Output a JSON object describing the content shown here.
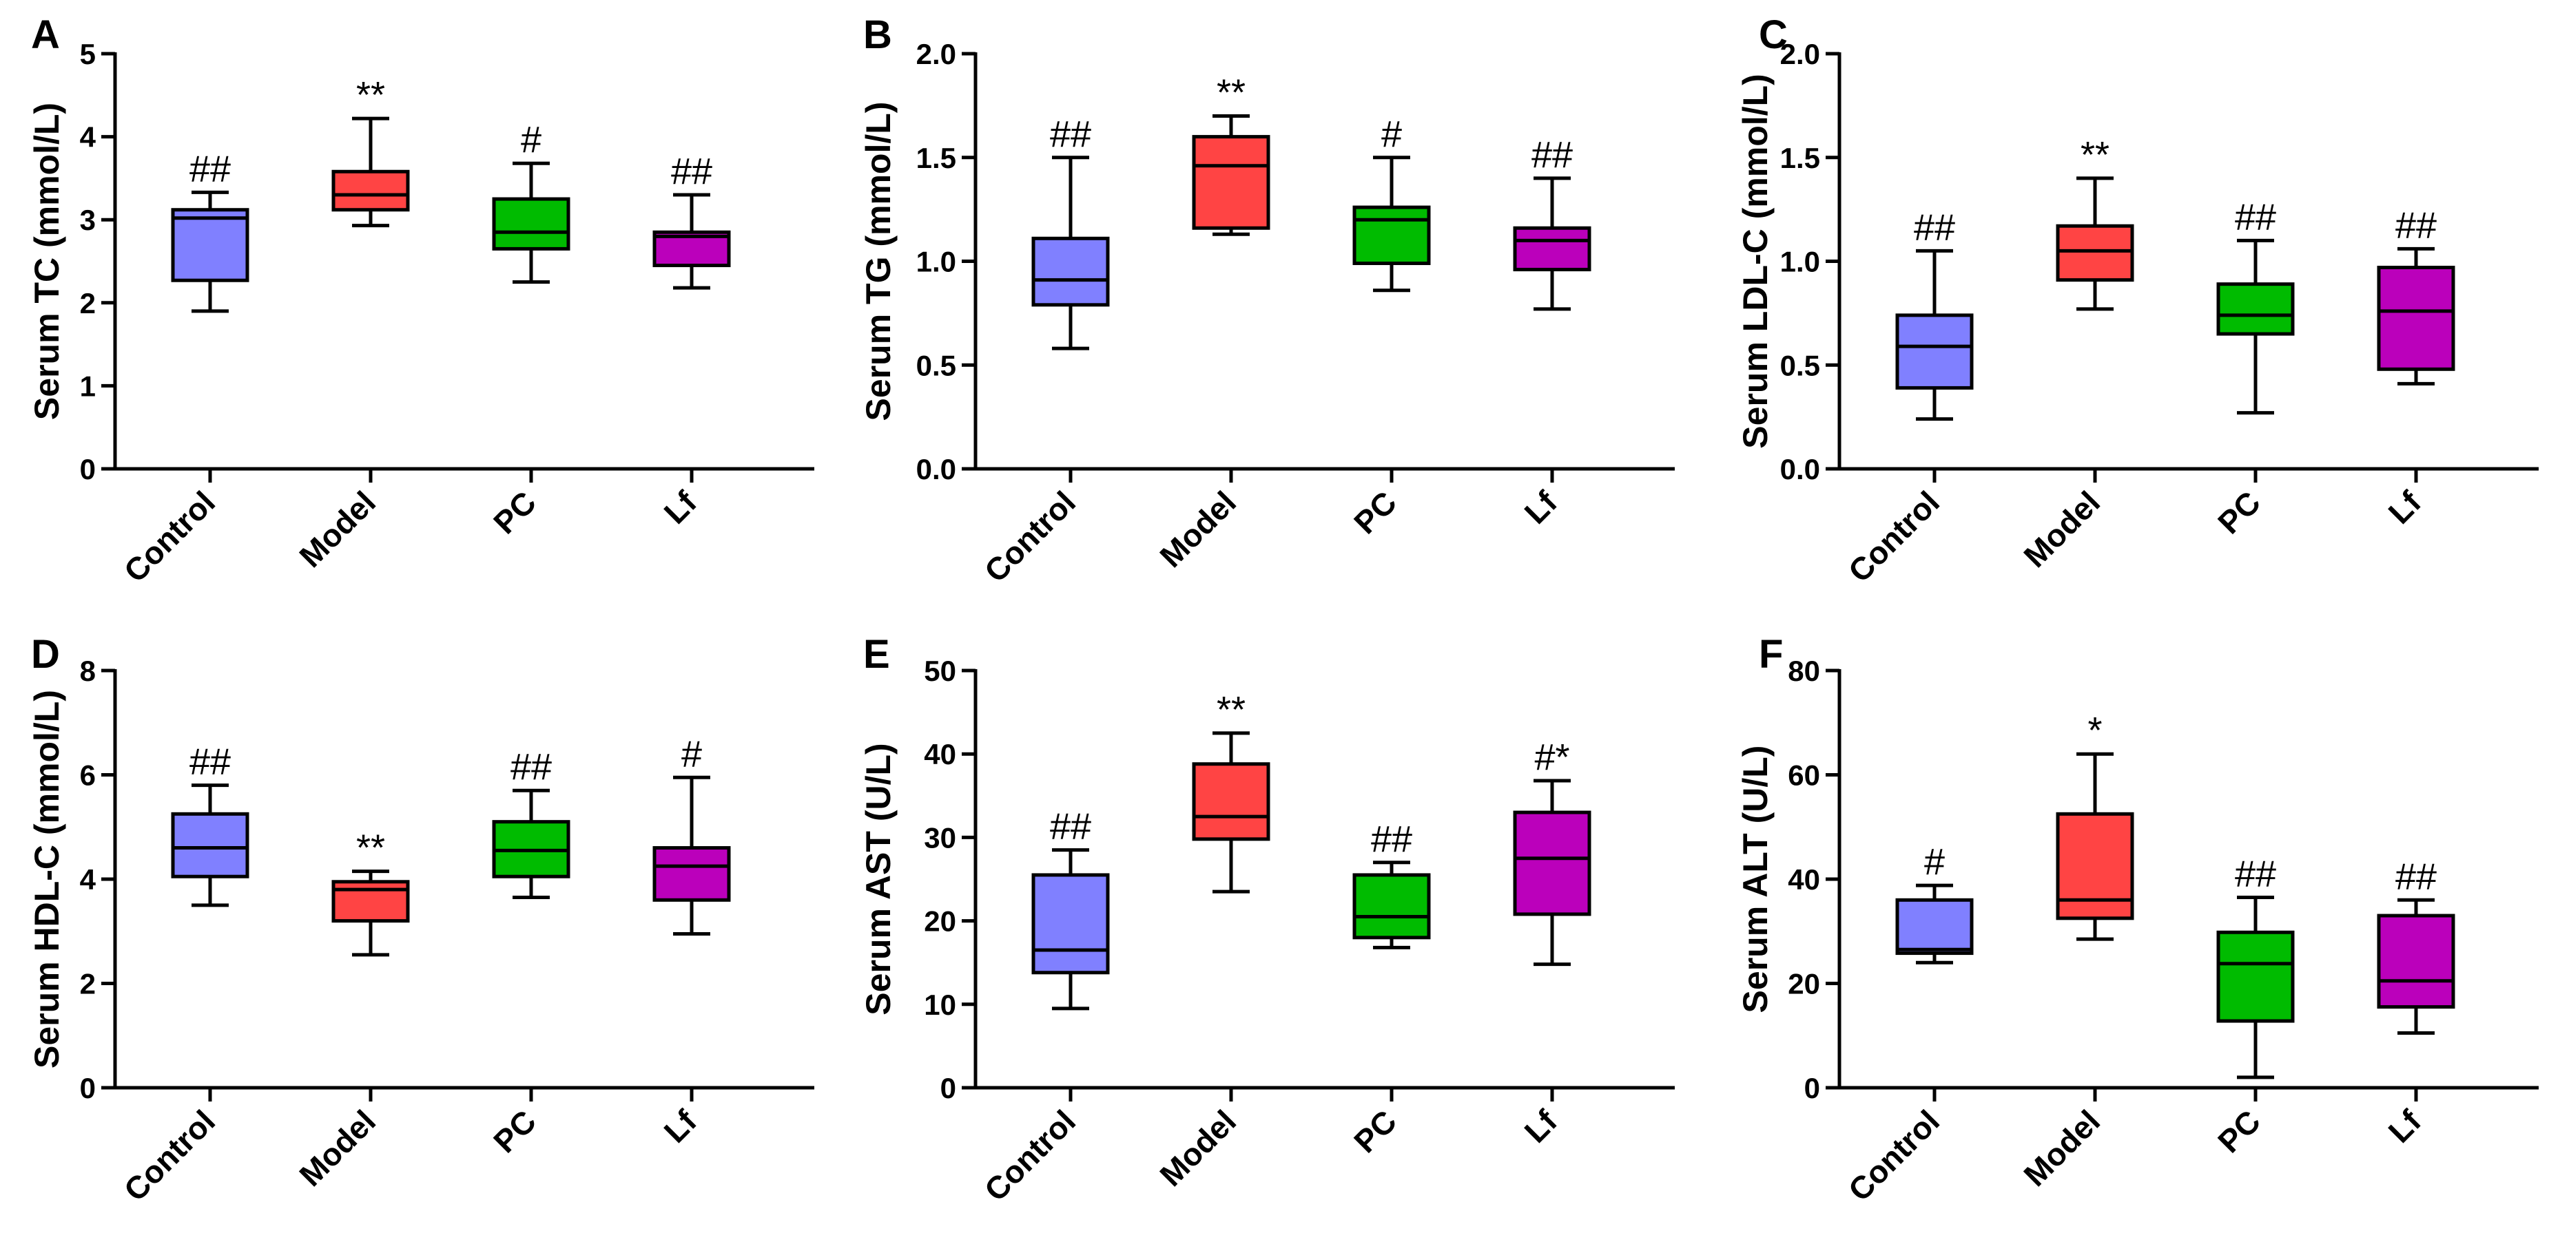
{
  "chart_data": [
    {
      "type": "box",
      "panel": "A",
      "ylabel": "Serum TC (mmol/L)",
      "ylim": [
        0,
        5
      ],
      "yticks": [
        "0",
        "1",
        "2",
        "3",
        "4",
        "5"
      ],
      "categories": [
        "Control",
        "Model",
        "PC",
        "Lf"
      ],
      "colors": [
        "#8080ff",
        "#ff4444",
        "#00bb00",
        "#bb00bb"
      ],
      "boxes": [
        {
          "min": 1.9,
          "q1": 2.27,
          "median": 3.02,
          "q3": 3.12,
          "max": 3.33,
          "sig": "##"
        },
        {
          "min": 2.93,
          "q1": 3.12,
          "median": 3.3,
          "q3": 3.58,
          "max": 4.22,
          "sig": "**"
        },
        {
          "min": 2.25,
          "q1": 2.65,
          "median": 2.85,
          "q3": 3.25,
          "max": 3.68,
          "sig": "#"
        },
        {
          "min": 2.18,
          "q1": 2.45,
          "median": 2.8,
          "q3": 2.85,
          "max": 3.3,
          "sig": "##"
        }
      ]
    },
    {
      "type": "box",
      "panel": "B",
      "ylabel": "Serum TG (mmol/L)",
      "ylim": [
        0,
        2
      ],
      "yticks": [
        "0.0",
        "0.5",
        "1.0",
        "1.5",
        "2.0"
      ],
      "categories": [
        "Control",
        "Model",
        "PC",
        "Lf"
      ],
      "colors": [
        "#8080ff",
        "#ff4444",
        "#00bb00",
        "#bb00bb"
      ],
      "boxes": [
        {
          "min": 0.58,
          "q1": 0.79,
          "median": 0.91,
          "q3": 1.11,
          "max": 1.5,
          "sig": "##"
        },
        {
          "min": 1.13,
          "q1": 1.16,
          "median": 1.46,
          "q3": 1.6,
          "max": 1.7,
          "sig": "**"
        },
        {
          "min": 0.86,
          "q1": 0.99,
          "median": 1.2,
          "q3": 1.26,
          "max": 1.5,
          "sig": "#"
        },
        {
          "min": 0.77,
          "q1": 0.96,
          "median": 1.1,
          "q3": 1.16,
          "max": 1.4,
          "sig": "##"
        }
      ]
    },
    {
      "type": "box",
      "panel": "C",
      "ylabel": "Serum LDL-C (mmol/L)",
      "ylim": [
        0,
        2
      ],
      "yticks": [
        "0.0",
        "0.5",
        "1.0",
        "1.5",
        "2.0"
      ],
      "categories": [
        "Control",
        "Model",
        "PC",
        "Lf"
      ],
      "colors": [
        "#8080ff",
        "#ff4444",
        "#00bb00",
        "#bb00bb"
      ],
      "boxes": [
        {
          "min": 0.24,
          "q1": 0.39,
          "median": 0.59,
          "q3": 0.74,
          "max": 1.05,
          "sig": "##"
        },
        {
          "min": 0.77,
          "q1": 0.91,
          "median": 1.05,
          "q3": 1.17,
          "max": 1.4,
          "sig": "**"
        },
        {
          "min": 0.27,
          "q1": 0.65,
          "median": 0.74,
          "q3": 0.89,
          "max": 1.1,
          "sig": "##"
        },
        {
          "min": 0.41,
          "q1": 0.48,
          "median": 0.76,
          "q3": 0.97,
          "max": 1.06,
          "sig": "##"
        }
      ]
    },
    {
      "type": "box",
      "panel": "D",
      "ylabel": "Serum HDL-C (mmol/L)",
      "ylim": [
        0,
        8
      ],
      "yticks": [
        "0",
        "2",
        "4",
        "6",
        "8"
      ],
      "categories": [
        "Control",
        "Model",
        "PC",
        "Lf"
      ],
      "colors": [
        "#8080ff",
        "#ff4444",
        "#00bb00",
        "#bb00bb"
      ],
      "boxes": [
        {
          "min": 3.5,
          "q1": 4.05,
          "median": 4.6,
          "q3": 5.25,
          "max": 5.8,
          "sig": "##"
        },
        {
          "min": 2.55,
          "q1": 3.2,
          "median": 3.8,
          "q3": 3.95,
          "max": 4.15,
          "sig": "**"
        },
        {
          "min": 3.65,
          "q1": 4.05,
          "median": 4.55,
          "q3": 5.1,
          "max": 5.7,
          "sig": "##"
        },
        {
          "min": 2.95,
          "q1": 3.6,
          "median": 4.25,
          "q3": 4.6,
          "max": 5.95,
          "sig": "#"
        }
      ]
    },
    {
      "type": "box",
      "panel": "E",
      "ylabel": "Serum AST (U/L)",
      "ylim": [
        0,
        50
      ],
      "yticks": [
        "0",
        "10",
        "20",
        "30",
        "40",
        "50"
      ],
      "categories": [
        "Control",
        "Model",
        "PC",
        "Lf"
      ],
      "colors": [
        "#8080ff",
        "#ff4444",
        "#00bb00",
        "#bb00bb"
      ],
      "boxes": [
        {
          "min": 9.5,
          "q1": 13.8,
          "median": 16.5,
          "q3": 25.5,
          "max": 28.5,
          "sig": "##"
        },
        {
          "min": 23.5,
          "q1": 29.8,
          "median": 32.5,
          "q3": 38.8,
          "max": 42.5,
          "sig": "**"
        },
        {
          "min": 16.8,
          "q1": 18.0,
          "median": 20.5,
          "q3": 25.5,
          "max": 27.0,
          "sig": "##"
        },
        {
          "min": 14.8,
          "q1": 20.8,
          "median": 27.5,
          "q3": 33.0,
          "max": 36.8,
          "sig": "#*"
        }
      ]
    },
    {
      "type": "box",
      "panel": "F",
      "ylabel": "Serum ALT (U/L)",
      "ylim": [
        0,
        80
      ],
      "yticks": [
        "0",
        "20",
        "40",
        "60",
        "80"
      ],
      "categories": [
        "Control",
        "Model",
        "PC",
        "Lf"
      ],
      "colors": [
        "#8080ff",
        "#ff4444",
        "#00bb00",
        "#bb00bb"
      ],
      "boxes": [
        {
          "min": 24.0,
          "q1": 25.8,
          "median": 26.5,
          "q3": 36.0,
          "max": 38.8,
          "sig": "#"
        },
        {
          "min": 28.5,
          "q1": 32.5,
          "median": 36.0,
          "q3": 52.5,
          "max": 64.0,
          "sig": "*"
        },
        {
          "min": 2.0,
          "q1": 12.8,
          "median": 23.8,
          "q3": 29.8,
          "max": 36.5,
          "sig": "##"
        },
        {
          "min": 10.5,
          "q1": 15.5,
          "median": 20.5,
          "q3": 33.0,
          "max": 36.0,
          "sig": "##"
        }
      ]
    }
  ]
}
